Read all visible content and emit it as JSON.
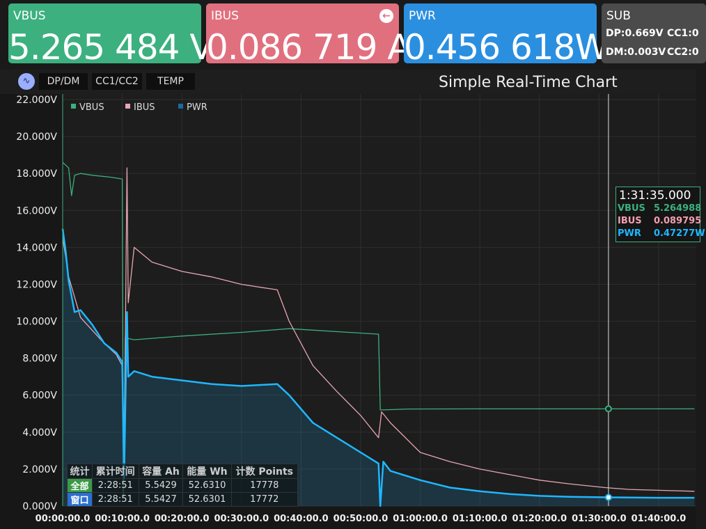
{
  "cards": {
    "vbus": {
      "label": "VBUS",
      "value": "5.265 484 V"
    },
    "ibus": {
      "label": "IBUS",
      "value": "0.086 719 A"
    },
    "pwr": {
      "label": "PWR",
      "value": "0.456 618W"
    },
    "sub": {
      "label": "SUB",
      "dp": "DP:0.669V",
      "dm": "DM:0.003V",
      "cc1": "CC1:0",
      "cc2": "CC2:0"
    }
  },
  "tabs": [
    "DP/DM",
    "CC1/CC2",
    "TEMP"
  ],
  "chart_title": "Simple Real-Time Chart",
  "tooltip": {
    "time": "1:31:35.000",
    "vbus": {
      "name": "VBUS",
      "value": "5.264988"
    },
    "ibus": {
      "name": "IBUS",
      "value": "0.089795"
    },
    "pwr": {
      "name": "PWR",
      "value": "0.47277W"
    }
  },
  "stats": {
    "headers": [
      "统计",
      "累计时间",
      "容量 Ah",
      "能量 Wh",
      "计数 Points"
    ],
    "rows": [
      {
        "label": "全部",
        "time": "2:28:51",
        "ah": "5.5429",
        "wh": "52.6310",
        "points": "17778"
      },
      {
        "label": "窗口",
        "time": "2:28:51",
        "ah": "5.5427",
        "wh": "52.6301",
        "points": "17772"
      }
    ]
  },
  "colors": {
    "vbus": "#3cb07f",
    "ibus": "#e8a6b4",
    "pwr": "#1fb7ff"
  },
  "chart_data": {
    "type": "line",
    "x_unit": "minutes",
    "y_ticks": [
      "0.000V",
      "2.000V",
      "4.000V",
      "6.000V",
      "8.000V",
      "10.000V",
      "12.000V",
      "14.000V",
      "16.000V",
      "18.000V",
      "20.000V",
      "22.000V"
    ],
    "x_ticks": [
      "00:00:00.0",
      "00:10:00.0",
      "00:20:00.0",
      "00:30:00.0",
      "00:40:00.0",
      "00:50:00.0",
      "01:00:00.0",
      "01:10:00.0",
      "01:20:00.0",
      "01:30:00.0",
      "01:40:00.0"
    ],
    "ylim": [
      0,
      22
    ],
    "xlim": [
      0,
      106
    ],
    "legend": [
      "VBUS",
      "IBUS",
      "PWR"
    ],
    "cursor_x": 91.58,
    "series": [
      {
        "name": "VBUS",
        "color": "#3cb07f",
        "x": [
          0,
          1,
          1.5,
          2,
          3,
          5,
          8,
          10,
          10.2,
          10.5,
          12,
          20,
          30,
          38,
          53,
          53.3,
          58,
          70,
          91.58,
          106
        ],
        "y": [
          18.6,
          18.3,
          16.8,
          17.9,
          18.0,
          17.9,
          17.8,
          17.7,
          0.5,
          9.1,
          9.0,
          9.2,
          9.4,
          9.6,
          9.3,
          5.2,
          5.25,
          5.26,
          5.26,
          5.26
        ]
      },
      {
        "name": "IBUS",
        "color": "#e8a6b4",
        "x": [
          0,
          0.5,
          1,
          3,
          5,
          7,
          9,
          10,
          10.3,
          10.8,
          11,
          12,
          15,
          20,
          25,
          30,
          36,
          38,
          42,
          46,
          50,
          53,
          53.5,
          55,
          60,
          65,
          70,
          75,
          80,
          85,
          91,
          95,
          100,
          106
        ],
        "y": [
          14.5,
          13.5,
          12.4,
          10.2,
          9.5,
          8.8,
          8.2,
          7.6,
          2.0,
          18.3,
          11.0,
          14.0,
          13.2,
          12.7,
          12.4,
          12.0,
          11.7,
          10.0,
          7.6,
          6.2,
          4.9,
          3.7,
          5.1,
          4.5,
          2.9,
          2.4,
          2.0,
          1.7,
          1.4,
          1.2,
          1.0,
          0.9,
          0.85,
          0.8
        ]
      },
      {
        "name": "PWR",
        "color": "#1fb7ff",
        "x": [
          0,
          0.5,
          1,
          2,
          3,
          5,
          7,
          9,
          10,
          10.3,
          10.8,
          11,
          12,
          15,
          20,
          25,
          30,
          36,
          38,
          42,
          46,
          50,
          53,
          53.3,
          53.8,
          55,
          60,
          65,
          70,
          75,
          80,
          85,
          91.58,
          95,
          100,
          106
        ],
        "y": [
          15.0,
          13.8,
          12.2,
          10.5,
          10.6,
          9.8,
          8.8,
          8.3,
          7.8,
          1.5,
          10.5,
          7.0,
          7.3,
          7.0,
          6.8,
          6.6,
          6.5,
          6.6,
          6.0,
          4.5,
          3.7,
          2.9,
          2.3,
          0.0,
          2.4,
          1.9,
          1.4,
          1.0,
          0.8,
          0.65,
          0.55,
          0.5,
          0.47,
          0.46,
          0.45,
          0.45
        ]
      }
    ]
  }
}
